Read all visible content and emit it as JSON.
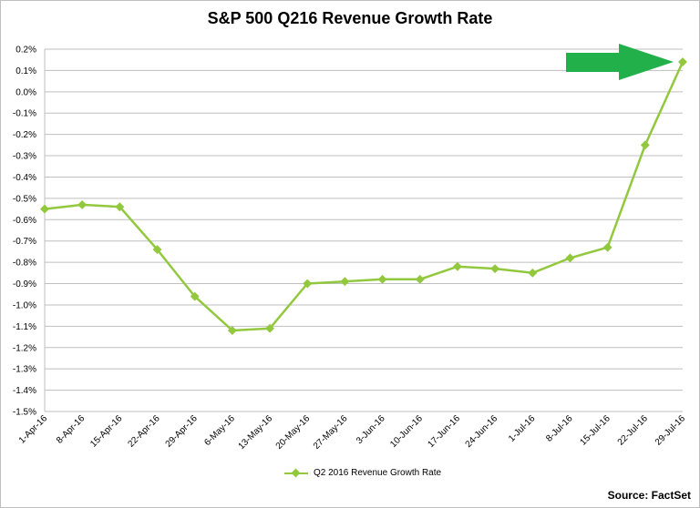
{
  "chart_data": {
    "type": "line",
    "title": "S&P 500 Q216 Revenue Growth Rate",
    "xlabel": "",
    "ylabel": "",
    "ylim": [
      -1.5,
      0.2
    ],
    "ytick_step": 0.1,
    "ytick_labels": [
      "0.2%",
      "0.1%",
      "0.0%",
      "-0.1%",
      "-0.2%",
      "-0.3%",
      "-0.4%",
      "-0.5%",
      "-0.6%",
      "-0.7%",
      "-0.8%",
      "-0.9%",
      "-1.0%",
      "-1.1%",
      "-1.2%",
      "-1.3%",
      "-1.4%",
      "-1.5%"
    ],
    "grid": true,
    "categories": [
      "1-Apr-16",
      "8-Apr-16",
      "15-Apr-16",
      "22-Apr-16",
      "29-Apr-16",
      "6-May-16",
      "13-May-16",
      "20-May-16",
      "27-May-16",
      "3-Jun-16",
      "10-Jun-16",
      "17-Jun-16",
      "24-Jun-16",
      "1-Jul-16",
      "8-Jul-16",
      "15-Jul-16",
      "22-Jul-16",
      "29-Jul-16"
    ],
    "series": [
      {
        "name": "Q2 2016 Revenue Growth Rate",
        "color": "#92c83e",
        "values": [
          -0.55,
          -0.53,
          -0.54,
          -0.74,
          -0.96,
          -1.12,
          -1.11,
          -0.9,
          -0.89,
          -0.88,
          -0.88,
          -0.82,
          -0.83,
          -0.85,
          -0.78,
          -0.73,
          -0.25,
          0.14
        ]
      }
    ],
    "legend_position": "bottom",
    "annotation": "green arrow pointing right at final data point",
    "annotation_color": "#22b04a"
  },
  "source": "Source: FactSet"
}
